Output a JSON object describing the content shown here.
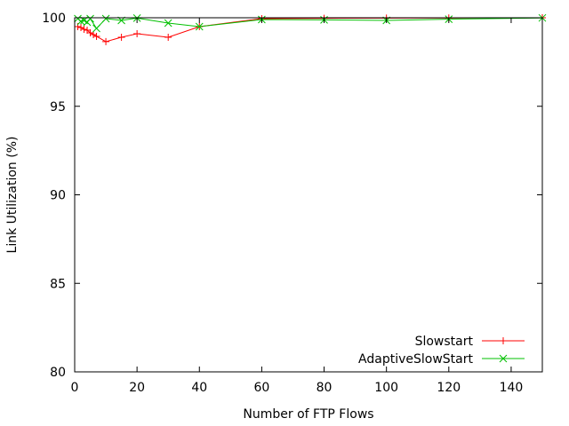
{
  "chart_data": {
    "type": "line",
    "title": "",
    "xlabel": "Number of FTP Flows",
    "ylabel": "Link Utilization (%)",
    "xlim": [
      0,
      150
    ],
    "ylim": [
      80,
      100
    ],
    "xticks": [
      0,
      20,
      40,
      60,
      80,
      100,
      120,
      140
    ],
    "yticks": [
      80,
      85,
      90,
      95,
      100
    ],
    "grid": false,
    "legend_position": "bottom-right",
    "series": [
      {
        "name": "Slowstart",
        "color": "#ff0000",
        "marker": "plus",
        "x": [
          1,
          2,
          3,
          4,
          5,
          6,
          7,
          10,
          15,
          20,
          30,
          40,
          60,
          80,
          100,
          120,
          150
        ],
        "y": [
          99.5,
          99.45,
          99.35,
          99.3,
          99.15,
          99.05,
          98.95,
          98.65,
          98.9,
          99.1,
          98.9,
          99.5,
          99.95,
          99.97,
          99.98,
          99.99,
          100.0
        ]
      },
      {
        "name": "AdaptiveSlowStart",
        "color": "#00c000",
        "marker": "x",
        "x": [
          1,
          2,
          3,
          4,
          5,
          7,
          10,
          15,
          20,
          30,
          40,
          60,
          80,
          100,
          120,
          150
        ],
        "y": [
          99.95,
          99.8,
          99.85,
          99.75,
          99.95,
          99.4,
          99.95,
          99.85,
          99.98,
          99.7,
          99.5,
          99.9,
          99.88,
          99.85,
          99.92,
          99.99
        ]
      }
    ]
  }
}
